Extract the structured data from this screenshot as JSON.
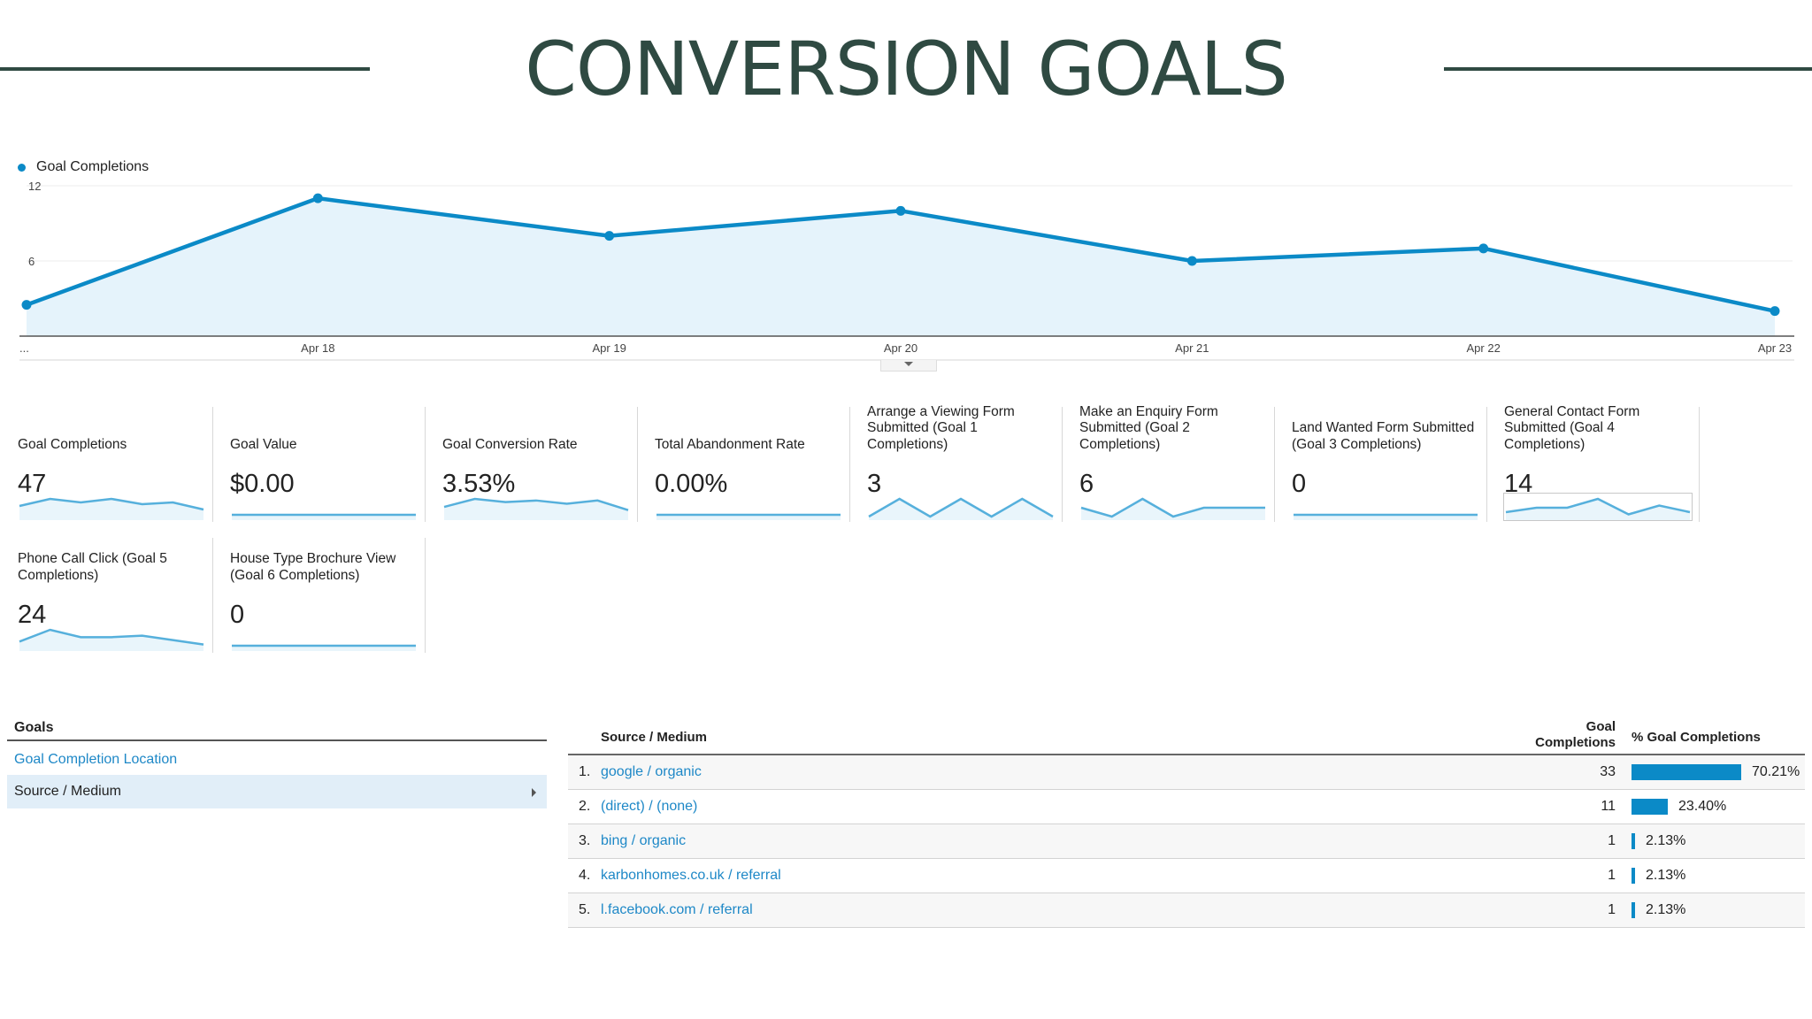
{
  "header": {
    "title": "CONVERSION GOALS"
  },
  "colors": {
    "accent": "#0b8ac7",
    "fill": "#e5f3fb",
    "spark": "#56b0dc",
    "spark_fill": "#e9f5fb",
    "title": "#2f4a42",
    "link": "#1e88c7"
  },
  "chart_data": {
    "type": "line",
    "series": [
      {
        "name": "Goal Completions",
        "values": [
          2.5,
          11,
          8,
          10,
          6,
          7,
          2
        ]
      }
    ],
    "categories": [
      "...",
      "Apr 18",
      "Apr 19",
      "Apr 20",
      "Apr 21",
      "Apr 22",
      "Apr 23"
    ],
    "yticks": [
      6,
      12
    ],
    "ylim": [
      0,
      12
    ],
    "grid": true,
    "legend": "top-left",
    "area_fill": true
  },
  "metrics": [
    {
      "label": "Goal Completions",
      "value": "47",
      "spark": [
        3,
        5,
        4,
        5,
        3.5,
        4,
        2
      ]
    },
    {
      "label": "Goal Value",
      "value": "$0.00",
      "spark": [
        0,
        0,
        0,
        0,
        0,
        0,
        0
      ]
    },
    {
      "label": "Goal Conversion Rate",
      "value": "3.53%",
      "spark": [
        3,
        5.5,
        4.5,
        5,
        4,
        5,
        2
      ]
    },
    {
      "label": "Total Abandonment Rate",
      "value": "0.00%",
      "spark": [
        0,
        0,
        0,
        0,
        0,
        0,
        0
      ]
    },
    {
      "label": "Arrange a Viewing Form Submitted (Goal 1 Completions)",
      "value": "3",
      "spark": [
        0,
        1,
        0,
        1,
        0,
        1,
        0
      ]
    },
    {
      "label": "Make an Enquiry Form Submitted (Goal 2 Completions)",
      "value": "6",
      "spark": [
        1,
        0,
        2,
        0,
        1,
        1,
        1
      ]
    },
    {
      "label": "Land Wanted Form Submitted (Goal 3 Completions)",
      "value": "0",
      "spark": [
        0,
        0,
        0,
        0,
        0,
        0,
        0
      ]
    },
    {
      "label": "General Contact Form Submitted (Goal 4 Completions)",
      "value": "14",
      "spark": [
        1,
        2,
        2,
        4,
        0.5,
        2.5,
        1
      ]
    },
    {
      "label": "Phone Call Click (Goal 5 Completions)",
      "value": "24",
      "spark": [
        2,
        6,
        3.5,
        3.5,
        4,
        2.5,
        1
      ]
    },
    {
      "label": "House Type Brochure View (Goal 6 Completions)",
      "value": "0",
      "spark": [
        0,
        0,
        0,
        0,
        0,
        0,
        0
      ]
    }
  ],
  "goals_panel": {
    "heading": "Goals",
    "link": "Goal Completion Location",
    "selected": "Source / Medium"
  },
  "source_table": {
    "headers": {
      "source": "Source / Medium",
      "completions_line1": "Goal",
      "completions_line2": "Completions",
      "percent": "% Goal Completions"
    },
    "rows": [
      {
        "index": "1.",
        "source": "google / organic",
        "completions": "33",
        "percent": "70.21%",
        "fraction": 0.7021
      },
      {
        "index": "2.",
        "source": "(direct) / (none)",
        "completions": "11",
        "percent": "23.40%",
        "fraction": 0.234
      },
      {
        "index": "3.",
        "source": "bing / organic",
        "completions": "1",
        "percent": "2.13%",
        "fraction": 0.0213
      },
      {
        "index": "4.",
        "source": "karbonhomes.co.uk / referral",
        "completions": "1",
        "percent": "2.13%",
        "fraction": 0.0213
      },
      {
        "index": "5.",
        "source": "l.facebook.com / referral",
        "completions": "1",
        "percent": "2.13%",
        "fraction": 0.0213
      }
    ]
  }
}
